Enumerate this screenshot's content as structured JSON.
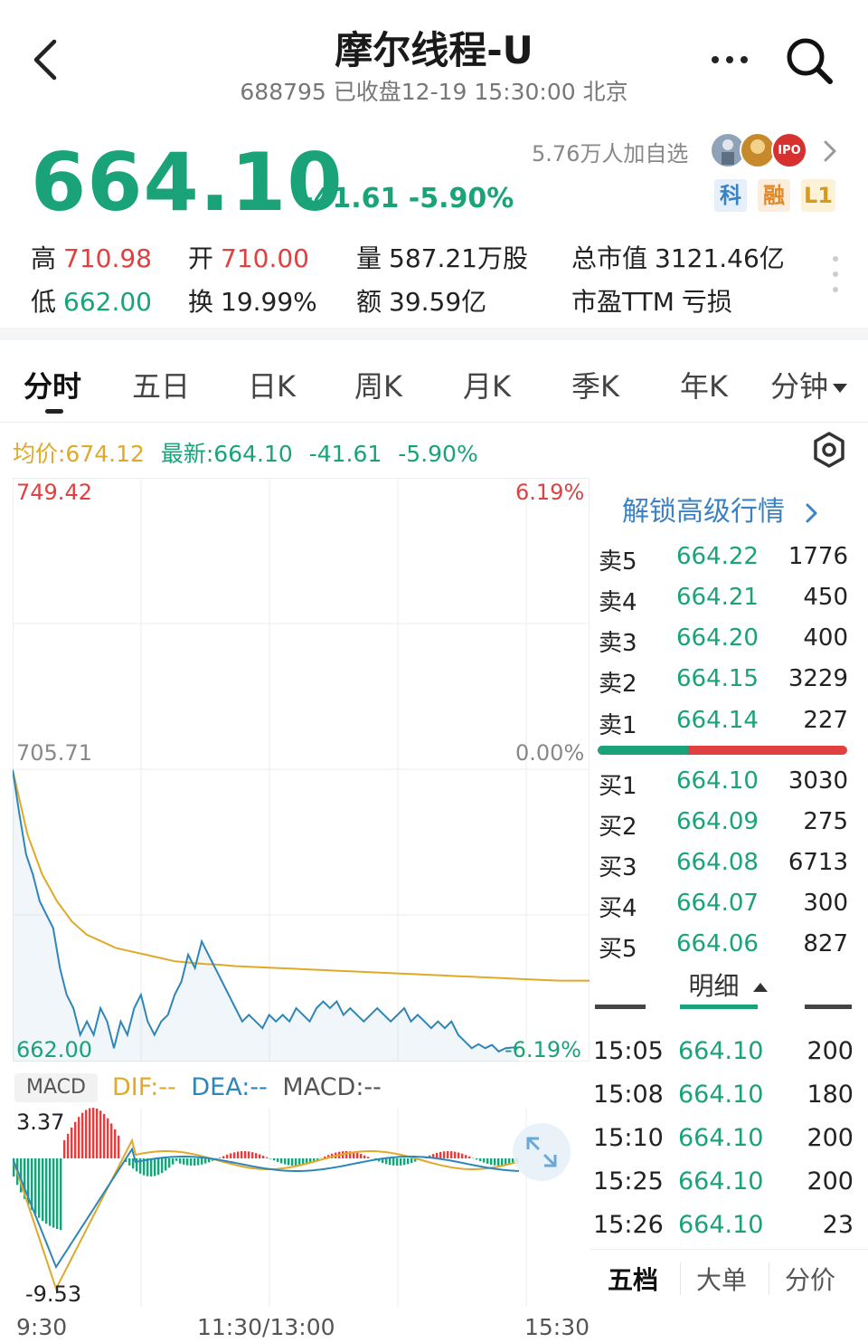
{
  "header": {
    "title": "摩尔线程-U",
    "subtitle": "688795 已收盘12-19 15:30:00 北京"
  },
  "quote": {
    "price": "664.10",
    "change": "-41.61",
    "change_pct": "-5.90%",
    "watchers": "5.76万人加自选",
    "badges": [
      "科",
      "融",
      "L1"
    ]
  },
  "stats": {
    "high_label": "高",
    "high": "710.98",
    "low_label": "低",
    "low": "662.00",
    "open_label": "开",
    "open": "710.00",
    "turnover_label": "换",
    "turnover": "19.99%",
    "volume_label": "量",
    "volume": "587.21万股",
    "amount_label": "额",
    "amount": "39.59亿",
    "mktcap_label": "总市值",
    "mktcap": "3121.46亿",
    "pe_label": "市盈TTM",
    "pe": "亏损"
  },
  "tabs": [
    "分时",
    "五日",
    "日K",
    "周K",
    "月K",
    "季K",
    "年K",
    "分钟"
  ],
  "indicator": {
    "avg": "均价:674.12",
    "latest": "最新:664.10",
    "change": "-41.61",
    "change_pct": "-5.90%"
  },
  "chart_data": {
    "type": "line",
    "y_left_ticks": [
      "749.42",
      "705.71",
      "662.00"
    ],
    "y_right_ticks": [
      "6.19%",
      "0.00%",
      "-6.19%"
    ],
    "x_ticks": [
      "9:30",
      "11:30/13:00",
      "15:30"
    ],
    "ylim": [
      662.0,
      749.42
    ],
    "series": [],
    "price_series": [
      705.7,
      699,
      693,
      690,
      686,
      684,
      682,
      676,
      672,
      670,
      666,
      668,
      666,
      670,
      668,
      664,
      668,
      666,
      670,
      672,
      668,
      666,
      668,
      669,
      672,
      674,
      678,
      676,
      680,
      678,
      676,
      674,
      672,
      670,
      668,
      669,
      668,
      667,
      669,
      668,
      669,
      668,
      670,
      669,
      668,
      670,
      671,
      670,
      671,
      669,
      670,
      669,
      668,
      669,
      670,
      669,
      668,
      669,
      670,
      668,
      669,
      668,
      667,
      668,
      667,
      668,
      666,
      665,
      664,
      664.6,
      664,
      664.5,
      663.5,
      664,
      664.1,
      664.1
    ],
    "avg_series": [
      705.7,
      696,
      690,
      686,
      683,
      681,
      680,
      679,
      678.5,
      678,
      677.5,
      677,
      676.8,
      676.6,
      676.5,
      676.3,
      676.2,
      676.1,
      676,
      675.9,
      675.8,
      675.7,
      675.6,
      675.5,
      675.4,
      675.3,
      675.2,
      675.1,
      675,
      674.9,
      674.8,
      674.7,
      674.6,
      674.5,
      674.4,
      674.3,
      674.2,
      674.12,
      674.12,
      674.12
    ],
    "macd": {
      "legend_dif": "DIF:--",
      "legend_dea": "DEA:--",
      "legend_macd": "MACD:--",
      "ylim_labels": [
        "3.37",
        "-9.53"
      ],
      "ylim": [
        -9.53,
        3.37
      ]
    }
  },
  "unlock_text": "解锁高级行情",
  "order_book": {
    "asks": [
      {
        "label": "卖5",
        "price": "664.22",
        "vol": "1776"
      },
      {
        "label": "卖4",
        "price": "664.21",
        "vol": "450"
      },
      {
        "label": "卖3",
        "price": "664.20",
        "vol": "400"
      },
      {
        "label": "卖2",
        "price": "664.15",
        "vol": "3229"
      },
      {
        "label": "卖1",
        "price": "664.14",
        "vol": "227"
      }
    ],
    "bids": [
      {
        "label": "买1",
        "price": "664.10",
        "vol": "3030"
      },
      {
        "label": "买2",
        "price": "664.09",
        "vol": "275"
      },
      {
        "label": "买3",
        "price": "664.08",
        "vol": "6713"
      },
      {
        "label": "买4",
        "price": "664.07",
        "vol": "300"
      },
      {
        "label": "买5",
        "price": "664.06",
        "vol": "827"
      }
    ]
  },
  "detail_label": "明细",
  "trades": [
    {
      "time": "15:05",
      "price": "664.10",
      "vol": "200"
    },
    {
      "time": "15:08",
      "price": "664.10",
      "vol": "180"
    },
    {
      "time": "15:10",
      "price": "664.10",
      "vol": "200"
    },
    {
      "time": "15:25",
      "price": "664.10",
      "vol": "200"
    },
    {
      "time": "15:26",
      "price": "664.10",
      "vol": "23"
    }
  ],
  "bottom_tabs": [
    "五档",
    "大单",
    "分价"
  ],
  "macd_tag": "MACD",
  "colors": {
    "down": "#1aa378",
    "up": "#e04040",
    "avg_line": "#e0a92a",
    "price_line": "#2e86b8",
    "link": "#3b82c4"
  },
  "icons": {
    "back": "back-arrow-icon",
    "more": "more-dots-icon",
    "search": "search-icon",
    "settings": "settings-icon",
    "expand": "expand-icon"
  }
}
